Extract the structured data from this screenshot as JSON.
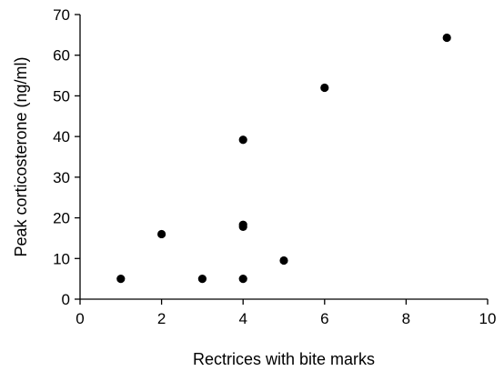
{
  "chart_data": {
    "type": "scatter",
    "title": "",
    "xlabel": "Rectrices with bite marks",
    "ylabel": "Peak corticosterone (ng/ml)",
    "xlim": [
      0,
      10
    ],
    "ylim": [
      0,
      70
    ],
    "xticks": [
      "0",
      "2",
      "4",
      "6",
      "8",
      "10"
    ],
    "yticks": [
      "0",
      "10",
      "20",
      "30",
      "40",
      "50",
      "60",
      "70"
    ],
    "grid": false,
    "legend": "none",
    "marker_color": "#000000",
    "series": [
      {
        "points": [
          {
            "x": 1,
            "y": 5
          },
          {
            "x": 2,
            "y": 16
          },
          {
            "x": 3,
            "y": 5
          },
          {
            "x": 4,
            "y": 5
          },
          {
            "x": 4,
            "y": 17.8
          },
          {
            "x": 4,
            "y": 18.3
          },
          {
            "x": 4,
            "y": 39.2
          },
          {
            "x": 5,
            "y": 9.5
          },
          {
            "x": 6,
            "y": 52
          },
          {
            "x": 9,
            "y": 64.3
          }
        ]
      }
    ]
  }
}
